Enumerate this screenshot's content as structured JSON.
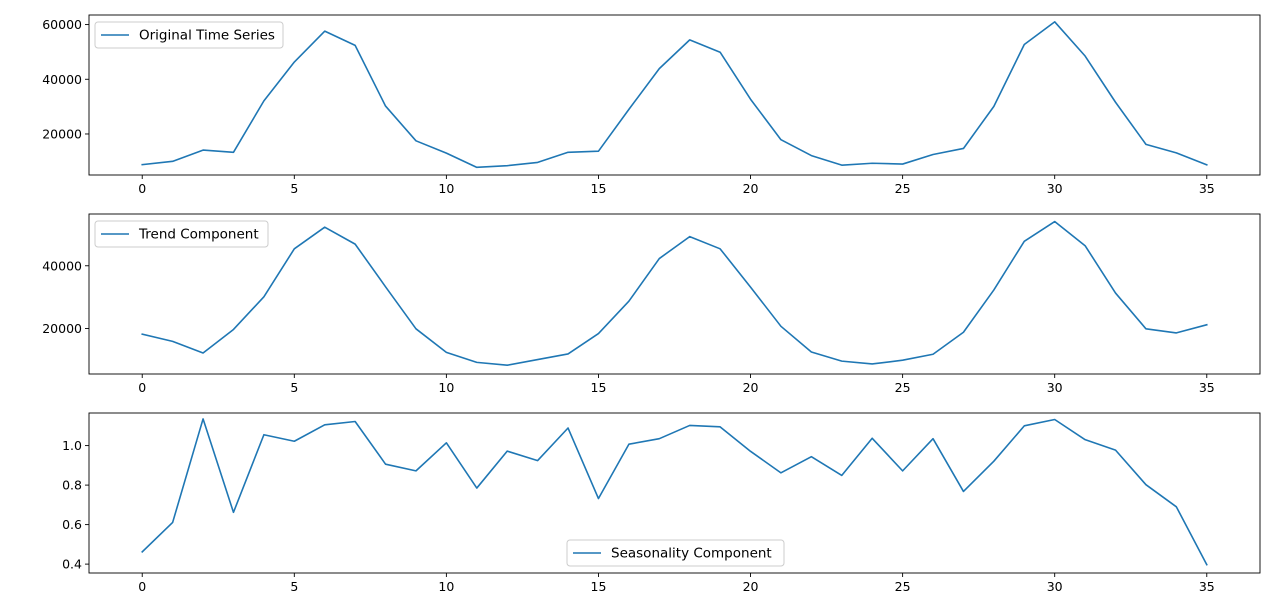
{
  "chart_data": [
    {
      "type": "line",
      "title": "",
      "xlabel": "",
      "ylabel": "",
      "xlim": [
        -1.75,
        36.75
      ],
      "ylim": [
        5000,
        63500
      ],
      "x_ticks": [
        0,
        5,
        10,
        15,
        20,
        25,
        30,
        35
      ],
      "y_ticks": [
        20000,
        40000,
        60000
      ],
      "legend": "upper left",
      "series": [
        {
          "name": "Original Time Series",
          "color": "#1f77b4",
          "x": [
            0,
            1,
            2,
            3,
            4,
            5,
            6,
            7,
            8,
            9,
            10,
            11,
            12,
            13,
            14,
            15,
            16,
            17,
            18,
            19,
            20,
            21,
            22,
            23,
            24,
            25,
            26,
            27,
            28,
            29,
            30,
            31,
            32,
            33,
            34,
            35
          ],
          "values": [
            8800,
            10000,
            14100,
            13300,
            32100,
            46300,
            57600,
            52400,
            30200,
            17500,
            13000,
            7800,
            8400,
            9600,
            13300,
            13700,
            29000,
            43900,
            54400,
            49900,
            32700,
            17900,
            12100,
            8600,
            9300,
            9000,
            12500,
            14700,
            30100,
            52700,
            61000,
            48500,
            31600,
            16200,
            13100,
            8700
          ]
        }
      ]
    },
    {
      "type": "line",
      "title": "",
      "xlabel": "",
      "ylabel": "",
      "xlim": [
        -1.75,
        36.75
      ],
      "ylim": [
        5500,
        56500
      ],
      "x_ticks": [
        0,
        5,
        10,
        15,
        20,
        25,
        30,
        35
      ],
      "y_ticks": [
        20000,
        40000
      ],
      "legend": "upper left",
      "series": [
        {
          "name": "Trend Component",
          "color": "#1f77b4",
          "x": [
            0,
            1,
            2,
            3,
            4,
            5,
            6,
            7,
            8,
            9,
            10,
            11,
            12,
            13,
            14,
            15,
            16,
            17,
            18,
            19,
            20,
            21,
            22,
            23,
            24,
            25,
            26,
            27,
            28,
            29,
            30,
            31,
            32,
            33,
            34,
            35
          ],
          "values": [
            18200,
            15900,
            12200,
            19700,
            30100,
            45400,
            52300,
            46900,
            33300,
            19900,
            12400,
            9200,
            8300,
            10100,
            11900,
            18400,
            28700,
            42300,
            49300,
            45400,
            33200,
            20700,
            12500,
            9600,
            8700,
            9900,
            11800,
            18800,
            32300,
            47800,
            54100,
            46400,
            31300,
            19900,
            18600,
            21200
          ]
        }
      ]
    },
    {
      "type": "line",
      "title": "",
      "xlabel": "",
      "ylabel": "",
      "xlim": [
        -1.75,
        36.75
      ],
      "ylim": [
        0.355,
        1.165
      ],
      "x_ticks": [
        0,
        5,
        10,
        15,
        20,
        25,
        30,
        35
      ],
      "y_ticks": [
        "0.4",
        "0.6",
        "0.8",
        "1.0"
      ],
      "legend": "lower center",
      "series": [
        {
          "name": "Seasonality Component",
          "color": "#1f77b4",
          "x": [
            0,
            1,
            2,
            3,
            4,
            5,
            6,
            7,
            8,
            9,
            10,
            11,
            12,
            13,
            14,
            15,
            16,
            17,
            18,
            19,
            20,
            21,
            22,
            23,
            24,
            25,
            26,
            27,
            28,
            29,
            30,
            31,
            32,
            33,
            34,
            35
          ],
          "values": [
            0.462,
            0.611,
            1.135,
            0.662,
            1.055,
            1.022,
            1.105,
            1.122,
            0.906,
            0.872,
            1.014,
            0.785,
            0.972,
            0.924,
            1.089,
            0.732,
            1.007,
            1.035,
            1.102,
            1.095,
            0.971,
            0.862,
            0.944,
            0.849,
            1.037,
            0.872,
            1.035,
            0.768,
            0.921,
            1.1,
            1.132,
            1.03,
            0.977,
            0.802,
            0.69,
            0.397
          ]
        }
      ]
    }
  ]
}
